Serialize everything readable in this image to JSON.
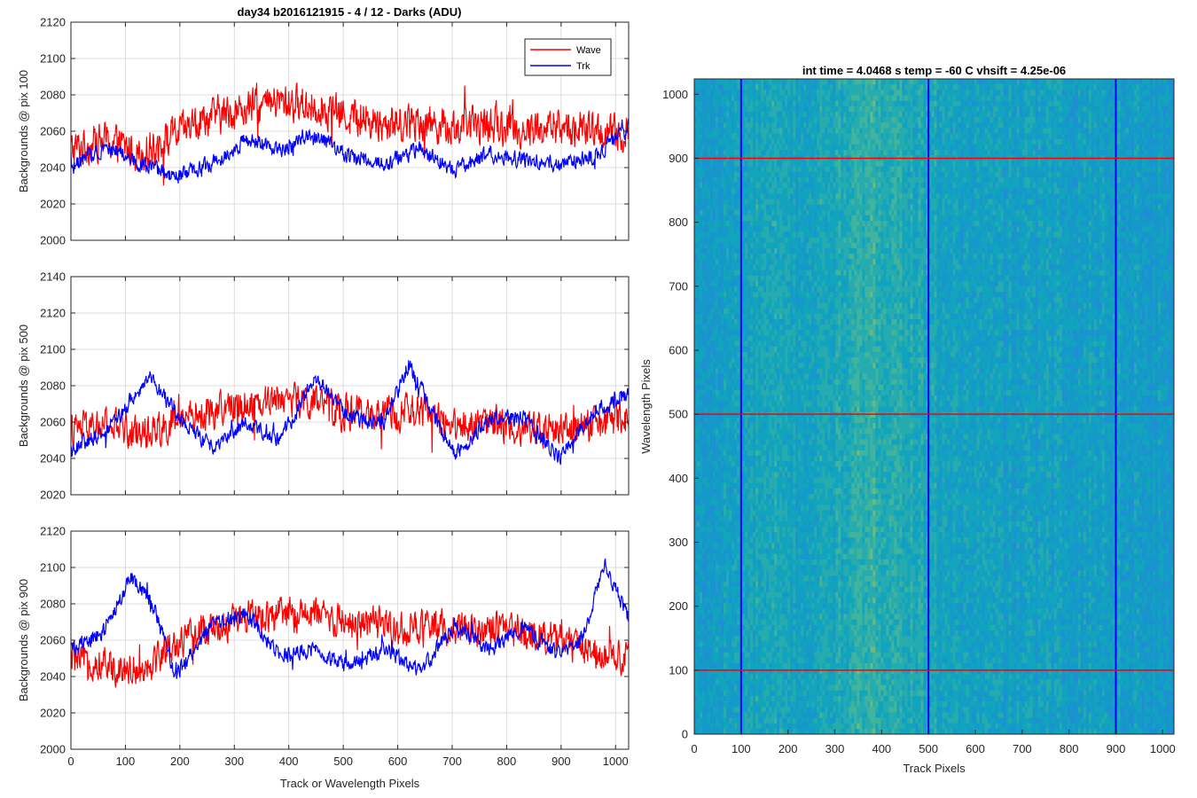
{
  "figure_title": "day34 b2016121915 - 4 / 12 - Darks (ADU)",
  "chart_data": [
    {
      "type": "line",
      "ylabel": "Backgrounds @ pix 100",
      "xlabel": "",
      "xlim": [
        0,
        1024
      ],
      "ylim": [
        2000,
        2120
      ],
      "xticks": [
        0,
        100,
        200,
        300,
        400,
        500,
        600,
        700,
        800,
        900,
        1000
      ],
      "yticks": [
        2000,
        2020,
        2040,
        2060,
        2080,
        2100,
        2120
      ],
      "grid": true,
      "legend": "top-right",
      "series": [
        {
          "name": "Wave",
          "color": "#ff0000",
          "x": [
            0,
            64,
            128,
            192,
            256,
            320,
            384,
            448,
            512,
            576,
            640,
            704,
            768,
            832,
            896,
            960,
            1024
          ],
          "y": [
            2050,
            2055,
            2048,
            2058,
            2068,
            2072,
            2076,
            2074,
            2068,
            2064,
            2066,
            2062,
            2064,
            2060,
            2062,
            2060,
            2058
          ],
          "amp": 14
        },
        {
          "name": "Trk",
          "color": "#0000ff",
          "x": [
            0,
            64,
            128,
            192,
            256,
            320,
            384,
            448,
            512,
            576,
            640,
            704,
            768,
            832,
            896,
            960,
            1024
          ],
          "y": [
            2040,
            2052,
            2042,
            2034,
            2042,
            2055,
            2050,
            2058,
            2046,
            2042,
            2050,
            2038,
            2048,
            2044,
            2042,
            2046,
            2062
          ],
          "amp": 6
        }
      ]
    },
    {
      "type": "line",
      "ylabel": "Backgrounds @ pix 500",
      "xlabel": "",
      "xlim": [
        0,
        1024
      ],
      "ylim": [
        2020,
        2140
      ],
      "xticks": [
        0,
        100,
        200,
        300,
        400,
        500,
        600,
        700,
        800,
        900,
        1000
      ],
      "yticks": [
        2020,
        2040,
        2060,
        2080,
        2100,
        2120,
        2140
      ],
      "grid": true,
      "series": [
        {
          "name": "Wave",
          "color": "#ff0000",
          "x": [
            0,
            64,
            128,
            192,
            256,
            320,
            384,
            448,
            512,
            576,
            640,
            704,
            768,
            832,
            896,
            960,
            1024
          ],
          "y": [
            2055,
            2058,
            2054,
            2060,
            2066,
            2070,
            2074,
            2070,
            2065,
            2064,
            2066,
            2058,
            2060,
            2056,
            2056,
            2058,
            2062
          ],
          "amp": 13
        },
        {
          "name": "Trk",
          "color": "#0000ff",
          "x": [
            0,
            64,
            100,
            144,
            192,
            256,
            320,
            384,
            448,
            512,
            576,
            620,
            704,
            768,
            832,
            896,
            960,
            1024
          ],
          "y": [
            2045,
            2055,
            2068,
            2085,
            2065,
            2046,
            2060,
            2050,
            2085,
            2062,
            2060,
            2092,
            2042,
            2062,
            2062,
            2040,
            2066,
            2075
          ],
          "amp": 6
        }
      ]
    },
    {
      "type": "line",
      "ylabel": "Backgrounds @ pix 900",
      "xlabel": "Track or Wavelength Pixels",
      "xlim": [
        0,
        1024
      ],
      "ylim": [
        2000,
        2120
      ],
      "xticks": [
        0,
        100,
        200,
        300,
        400,
        500,
        600,
        700,
        800,
        900,
        1000
      ],
      "yticks": [
        2000,
        2020,
        2040,
        2060,
        2080,
        2100,
        2120
      ],
      "grid": true,
      "series": [
        {
          "name": "Wave",
          "color": "#ff0000",
          "x": [
            0,
            64,
            128,
            192,
            256,
            320,
            384,
            448,
            512,
            576,
            640,
            704,
            768,
            832,
            896,
            960,
            1024
          ],
          "y": [
            2050,
            2046,
            2044,
            2058,
            2066,
            2072,
            2074,
            2074,
            2070,
            2068,
            2066,
            2068,
            2066,
            2064,
            2060,
            2054,
            2050
          ],
          "amp": 13
        },
        {
          "name": "Trk",
          "color": "#0000ff",
          "x": [
            0,
            64,
            110,
            150,
            192,
            256,
            320,
            384,
            448,
            512,
            576,
            640,
            704,
            768,
            832,
            896,
            940,
            980,
            1024
          ],
          "y": [
            2055,
            2065,
            2095,
            2080,
            2040,
            2068,
            2075,
            2052,
            2055,
            2045,
            2055,
            2042,
            2068,
            2055,
            2066,
            2052,
            2062,
            2102,
            2072
          ],
          "amp": 6
        }
      ]
    },
    {
      "type": "heatmap",
      "title": "int time = 4.0468 s    temp = -60 C    vhsift = 4.25e-06",
      "xlabel": "Track Pixels",
      "ylabel": "Wavelength Pixels",
      "xlim": [
        0,
        1024
      ],
      "ylim": [
        0,
        1024
      ],
      "xticks": [
        0,
        100,
        200,
        300,
        400,
        500,
        600,
        700,
        800,
        900,
        1000
      ],
      "yticks": [
        0,
        100,
        200,
        300,
        400,
        500,
        600,
        700,
        800,
        900,
        1000
      ],
      "colormap": "parula",
      "vertical_markers": [
        100,
        500,
        900
      ],
      "vertical_marker_color": "#0000ff",
      "horizontal_markers": [
        100,
        500,
        900
      ],
      "horizontal_marker_color": "#ff0000"
    }
  ]
}
